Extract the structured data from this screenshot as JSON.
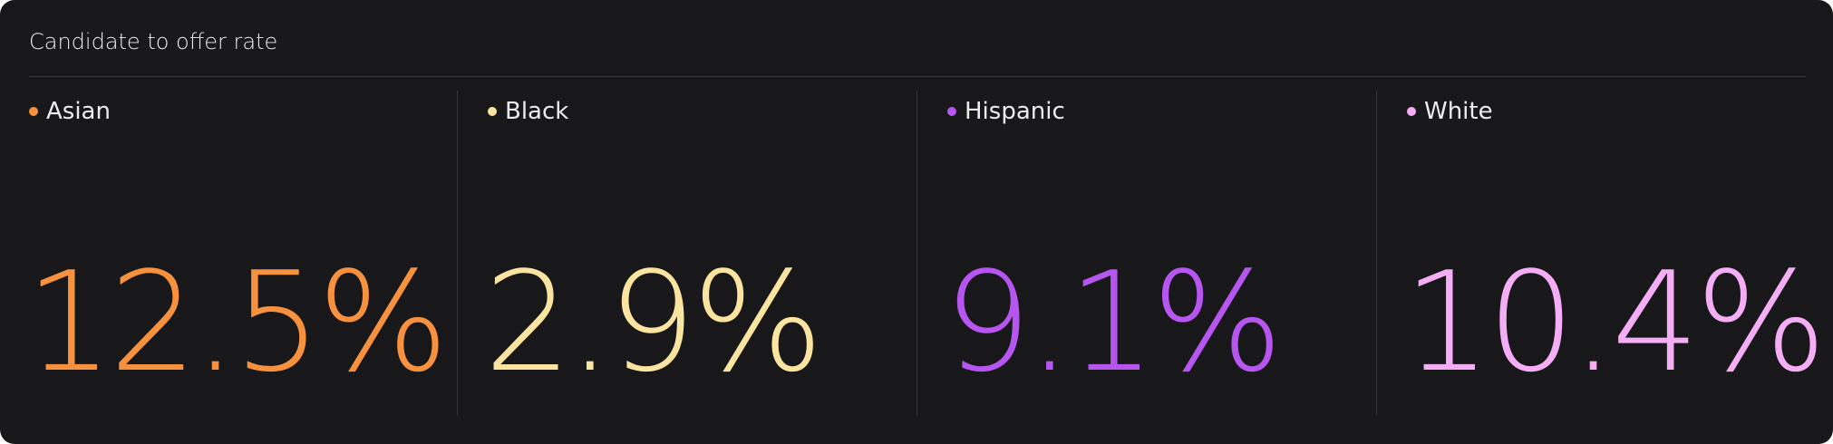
{
  "title": "Candidate to offer rate",
  "metrics": [
    {
      "label": "Asian",
      "value": "12.5%",
      "color": "#f7913d"
    },
    {
      "label": "Black",
      "value": "2.9%",
      "color": "#fbe3a0"
    },
    {
      "label": "Hispanic",
      "value": "9.1%",
      "color": "#b655f0"
    },
    {
      "label": "White",
      "value": "10.4%",
      "color": "#f5aef6"
    }
  ]
}
